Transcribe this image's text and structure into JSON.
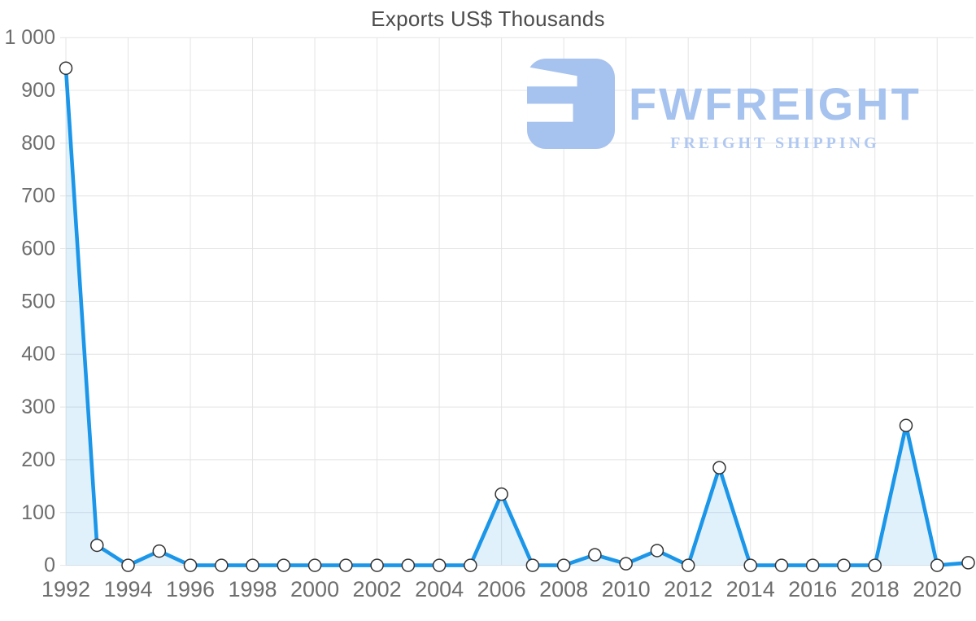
{
  "title": "Exports US$ Thousands",
  "logo": {
    "brand": "FWFREIGHT",
    "tagline": "FREIGHT SHIPPING",
    "icon": "fwfreight-f-mark",
    "color": "#a6c2ee",
    "tagline_color": "#b0c8f1"
  },
  "chart_data": {
    "type": "area",
    "title": "Exports US$ Thousands",
    "x": [
      1992,
      1993,
      1994,
      1995,
      1996,
      1997,
      1998,
      1999,
      2000,
      2001,
      2002,
      2003,
      2004,
      2005,
      2006,
      2007,
      2008,
      2009,
      2010,
      2011,
      2012,
      2013,
      2014,
      2015,
      2016,
      2017,
      2018,
      2019,
      2020,
      2021
    ],
    "series": [
      {
        "name": "Exports US$ Thousands",
        "values": [
          942,
          38,
          0,
          27,
          0,
          0,
          0,
          0,
          0,
          0,
          0,
          0,
          0,
          0,
          135,
          0,
          0,
          20,
          3,
          28,
          0,
          185,
          0,
          0,
          0,
          0,
          0,
          265,
          0,
          5
        ]
      }
    ],
    "ylim": [
      0,
      1000
    ],
    "ytick_step": 100,
    "ytick_labels": [
      "0",
      "100",
      "200",
      "300",
      "400",
      "500",
      "600",
      "700",
      "800",
      "900",
      "1 000"
    ],
    "xtick_labels": [
      "1992",
      "1994",
      "1996",
      "1998",
      "2000",
      "2002",
      "2004",
      "2006",
      "2008",
      "2010",
      "2012",
      "2014",
      "2016",
      "2018",
      "2020"
    ],
    "xtick_every": 2,
    "grid": true,
    "legend": "none",
    "colors": {
      "line": "#1b96e8",
      "fill": "rgba(27,150,232,0.13)",
      "marker_fill": "#ffffff",
      "marker_stroke": "#333333",
      "grid": "#e4e4e4",
      "tick_label": "#6e6e6e",
      "title": "#4c4c4c"
    }
  }
}
